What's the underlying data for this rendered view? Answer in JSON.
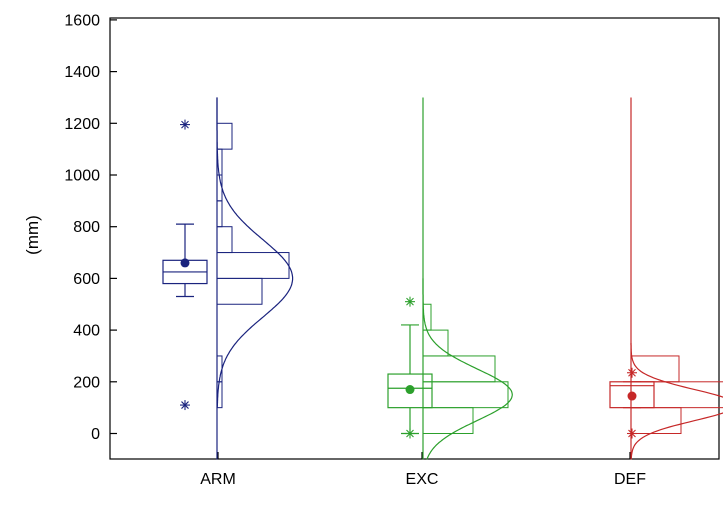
{
  "chart_data": {
    "type": "box",
    "ylabel": "(mm)",
    "ylim": [
      -100,
      1600
    ],
    "yticks": [
      0,
      200,
      400,
      600,
      800,
      1000,
      1200,
      1400,
      1600
    ],
    "categories": [
      "ARM",
      "EXC",
      "DEF"
    ],
    "grid": false,
    "legend": "none",
    "series": [
      {
        "name": "ARM",
        "color": "#1a237e",
        "box": {
          "whisker_low": 530,
          "q1": 580,
          "median": 625,
          "q3": 670,
          "whisker_high": 810,
          "mean": 660
        },
        "outliers": [
          1195,
          110
        ],
        "histogram": {
          "bins": [
            [
              100,
              200,
              0.05
            ],
            [
              200,
              300,
              0.05
            ],
            [
              500,
              600,
              0.45
            ],
            [
              600,
              700,
              0.72
            ],
            [
              700,
              800,
              0.15
            ],
            [
              800,
              900,
              0.05
            ],
            [
              900,
              1000,
              0.05
            ],
            [
              1000,
              1100,
              0.05
            ],
            [
              1100,
              1200,
              0.15
            ]
          ]
        },
        "density": {
          "mean": 600,
          "sd": 150,
          "range": [
            100,
            1300
          ]
        },
        "range": [
          -100,
          1300
        ]
      },
      {
        "name": "EXC",
        "color": "#2ca02c",
        "box": {
          "whisker_low": 0,
          "q1": 100,
          "median": 175,
          "q3": 230,
          "whisker_high": 420,
          "mean": 170
        },
        "outliers": [
          510,
          0
        ],
        "histogram": {
          "bins": [
            [
              0,
              100,
              0.5
            ],
            [
              100,
              200,
              0.85
            ],
            [
              200,
              300,
              0.72
            ],
            [
              300,
              400,
              0.25
            ],
            [
              400,
              500,
              0.08
            ]
          ]
        },
        "density": {
          "mean": 150,
          "sd": 100,
          "range": [
            -100,
            600
          ]
        },
        "range": [
          -100,
          1300
        ]
      },
      {
        "name": "DEF",
        "color": "#c62828",
        "box": {
          "whisker_low": 100,
          "q1": 100,
          "median": 185,
          "q3": 200,
          "whisker_high": 200,
          "mean": 145
        },
        "outliers": [
          235,
          0
        ],
        "histogram": {
          "bins": [
            [
              0,
              100,
              0.5
            ],
            [
              100,
              200,
              1.0
            ],
            [
              200,
              300,
              0.48
            ]
          ]
        },
        "density": {
          "mean": 110,
          "sd": 60,
          "range": [
            -100,
            350
          ]
        },
        "range": [
          -100,
          1300
        ]
      }
    ]
  }
}
